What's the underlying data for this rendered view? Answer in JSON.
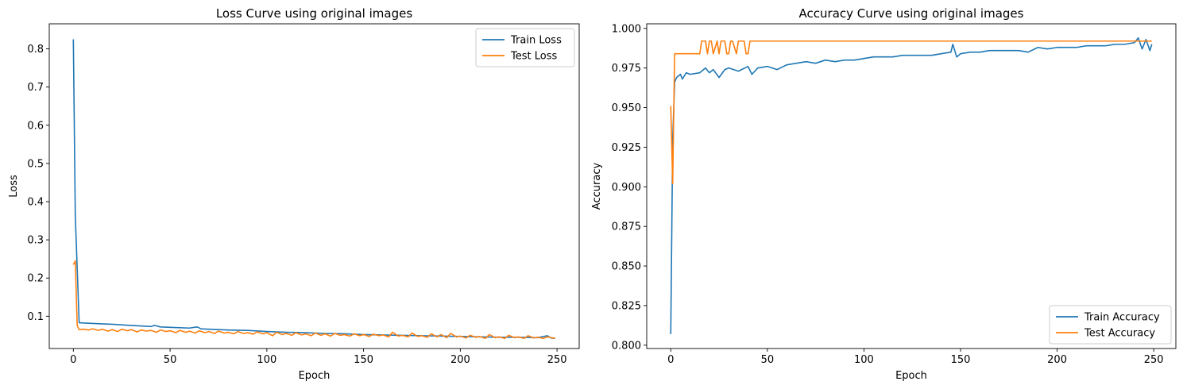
{
  "colors": {
    "train": "#1f77b4",
    "test": "#ff7f0e"
  },
  "chart_data": [
    {
      "type": "line",
      "title": "Loss Curve using original images",
      "xlabel": "Epoch",
      "ylabel": "Loss",
      "xlim": [
        -12.45,
        261.45
      ],
      "ylim": [
        0.0155,
        0.8655
      ],
      "xticks": [
        0,
        50,
        100,
        150,
        200,
        250
      ],
      "xtick_labels": [
        "0",
        "50",
        "100",
        "150",
        "200",
        "250"
      ],
      "yticks": [
        0.1,
        0.2,
        0.3,
        0.4,
        0.5,
        0.6,
        0.7,
        0.8
      ],
      "ytick_labels": [
        "0.1",
        "0.2",
        "0.3",
        "0.4",
        "0.5",
        "0.6",
        "0.7",
        "0.8"
      ],
      "legend_position": "top-right",
      "grid": false,
      "series": [
        {
          "name": "Train Loss",
          "color_key": "train",
          "x": [
            0,
            1,
            3,
            10,
            20,
            30,
            40,
            42,
            45,
            50,
            60,
            64,
            66,
            70,
            80,
            90,
            100,
            110,
            120,
            130,
            140,
            150,
            160,
            170,
            180,
            190,
            200,
            210,
            220,
            230,
            240,
            245,
            247,
            249
          ],
          "y": [
            0.825,
            0.365,
            0.083,
            0.081,
            0.079,
            0.076,
            0.073,
            0.076,
            0.072,
            0.071,
            0.069,
            0.072,
            0.067,
            0.066,
            0.064,
            0.063,
            0.06,
            0.058,
            0.057,
            0.055,
            0.054,
            0.052,
            0.051,
            0.05,
            0.049,
            0.048,
            0.047,
            0.046,
            0.045,
            0.045,
            0.044,
            0.049,
            0.043,
            0.042
          ]
        },
        {
          "name": "Test Loss",
          "color_key": "test",
          "x": [
            0,
            1,
            2,
            3,
            5,
            8,
            10,
            13,
            15,
            18,
            20,
            23,
            25,
            28,
            30,
            33,
            35,
            38,
            40,
            43,
            45,
            48,
            50,
            53,
            55,
            58,
            60,
            63,
            65,
            68,
            70,
            73,
            75,
            78,
            80,
            83,
            85,
            88,
            90,
            93,
            95,
            98,
            100,
            103,
            105,
            108,
            110,
            113,
            115,
            118,
            120,
            123,
            125,
            128,
            130,
            133,
            135,
            138,
            140,
            143,
            145,
            148,
            150,
            153,
            155,
            158,
            160,
            163,
            165,
            168,
            170,
            173,
            175,
            178,
            180,
            183,
            185,
            188,
            190,
            193,
            195,
            198,
            200,
            203,
            205,
            208,
            210,
            213,
            215,
            218,
            220,
            223,
            225,
            228,
            230,
            233,
            235,
            238,
            240,
            243,
            245,
            248,
            249
          ],
          "y": [
            0.235,
            0.245,
            0.075,
            0.065,
            0.066,
            0.064,
            0.067,
            0.063,
            0.066,
            0.061,
            0.065,
            0.06,
            0.066,
            0.062,
            0.065,
            0.059,
            0.064,
            0.061,
            0.063,
            0.058,
            0.064,
            0.06,
            0.062,
            0.057,
            0.063,
            0.058,
            0.061,
            0.056,
            0.062,
            0.057,
            0.06,
            0.055,
            0.061,
            0.056,
            0.058,
            0.054,
            0.06,
            0.055,
            0.057,
            0.053,
            0.059,
            0.054,
            0.057,
            0.049,
            0.058,
            0.052,
            0.055,
            0.05,
            0.057,
            0.051,
            0.054,
            0.049,
            0.056,
            0.05,
            0.054,
            0.048,
            0.055,
            0.05,
            0.052,
            0.048,
            0.054,
            0.049,
            0.052,
            0.047,
            0.053,
            0.049,
            0.051,
            0.046,
            0.058,
            0.048,
            0.05,
            0.046,
            0.056,
            0.047,
            0.049,
            0.045,
            0.054,
            0.046,
            0.052,
            0.044,
            0.055,
            0.046,
            0.048,
            0.043,
            0.05,
            0.045,
            0.047,
            0.042,
            0.052,
            0.044,
            0.046,
            0.042,
            0.05,
            0.044,
            0.046,
            0.042,
            0.049,
            0.043,
            0.045,
            0.042,
            0.046,
            0.043,
            0.043
          ]
        }
      ]
    },
    {
      "type": "line",
      "title": "Accuracy Curve using original images",
      "xlabel": "Epoch",
      "ylabel": "Accuracy",
      "xlim": [
        -12.45,
        261.45
      ],
      "ylim": [
        0.7979,
        1.0029
      ],
      "xticks": [
        0,
        50,
        100,
        150,
        200,
        250
      ],
      "xtick_labels": [
        "0",
        "50",
        "100",
        "150",
        "200",
        "250"
      ],
      "yticks": [
        0.8,
        0.825,
        0.85,
        0.875,
        0.9,
        0.925,
        0.95,
        0.975,
        1.0
      ],
      "ytick_labels": [
        "0.800",
        "0.825",
        "0.850",
        "0.875",
        "0.900",
        "0.925",
        "0.950",
        "0.975",
        "1.000"
      ],
      "legend_position": "bottom-right",
      "grid": false,
      "series": [
        {
          "name": "Train Accuracy",
          "color_key": "train",
          "x": [
            0,
            1,
            2,
            3,
            5,
            6,
            8,
            10,
            15,
            18,
            20,
            22,
            25,
            28,
            30,
            35,
            40,
            42,
            45,
            50,
            55,
            60,
            65,
            70,
            75,
            80,
            85,
            90,
            95,
            100,
            105,
            110,
            115,
            120,
            125,
            130,
            135,
            140,
            145,
            146,
            148,
            150,
            155,
            160,
            165,
            170,
            175,
            180,
            185,
            190,
            195,
            200,
            205,
            210,
            215,
            220,
            225,
            230,
            235,
            240,
            242,
            244,
            246,
            248,
            249
          ],
          "y": [
            0.807,
            0.93,
            0.966,
            0.969,
            0.971,
            0.968,
            0.972,
            0.971,
            0.972,
            0.975,
            0.972,
            0.974,
            0.969,
            0.974,
            0.975,
            0.973,
            0.976,
            0.971,
            0.975,
            0.976,
            0.974,
            0.977,
            0.978,
            0.979,
            0.978,
            0.98,
            0.979,
            0.98,
            0.98,
            0.981,
            0.982,
            0.982,
            0.982,
            0.983,
            0.983,
            0.983,
            0.983,
            0.984,
            0.985,
            0.99,
            0.982,
            0.984,
            0.985,
            0.985,
            0.986,
            0.986,
            0.986,
            0.986,
            0.985,
            0.988,
            0.987,
            0.988,
            0.988,
            0.988,
            0.989,
            0.989,
            0.989,
            0.99,
            0.99,
            0.991,
            0.994,
            0.987,
            0.993,
            0.986,
            0.99
          ]
        },
        {
          "name": "Test Accuracy",
          "color_key": "test",
          "x": [
            0,
            1,
            2,
            15,
            16,
            18,
            19,
            20,
            21,
            22,
            24,
            25,
            26,
            28,
            29,
            30,
            31,
            32,
            34,
            35,
            36,
            38,
            39,
            40,
            41,
            249
          ],
          "y": [
            0.951,
            0.902,
            0.984,
            0.984,
            0.992,
            0.992,
            0.984,
            0.992,
            0.992,
            0.984,
            0.992,
            0.984,
            0.992,
            0.992,
            0.984,
            0.984,
            0.992,
            0.992,
            0.984,
            0.992,
            0.992,
            0.992,
            0.984,
            0.984,
            0.992,
            0.992
          ]
        }
      ]
    }
  ]
}
